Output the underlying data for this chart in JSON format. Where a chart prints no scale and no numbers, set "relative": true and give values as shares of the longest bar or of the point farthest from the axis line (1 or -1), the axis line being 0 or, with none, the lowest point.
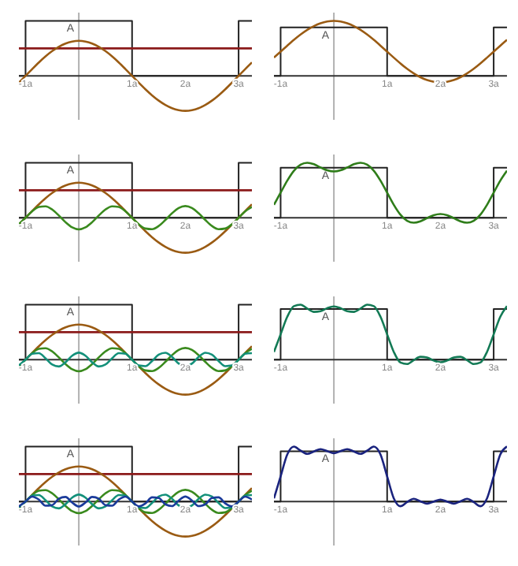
{
  "chart_data": [
    {
      "type": "line",
      "relative": true,
      "x": [
        -1.125,
        -1,
        -0.875,
        -0.75,
        -0.625,
        -0.5,
        -0.375,
        -0.25,
        -0.125,
        0,
        0.125,
        0.25,
        0.375,
        0.5,
        0.625,
        0.75,
        0.875,
        1,
        1.125,
        1.25,
        1.375,
        1.5,
        1.625,
        1.75,
        1.875,
        2,
        2.125,
        2.25,
        2.375,
        2.5,
        2.625,
        2.75,
        2.875,
        3,
        3.125,
        3.25
      ],
      "xlim": [
        -1.125,
        3.25
      ],
      "xticks": [
        {
          "value": -1,
          "label": "-1a"
        },
        {
          "value": 1,
          "label": "1a"
        },
        {
          "value": 2,
          "label": "2a"
        },
        {
          "value": 3,
          "label": "3a"
        }
      ],
      "annotations": [
        "A"
      ],
      "series": [
        {
          "type": "step",
          "color": "#222222",
          "x": [
            -1.125,
            -1,
            1,
            3,
            3.25
          ],
          "values": [
            0,
            1,
            0,
            1,
            1
          ]
        },
        {
          "color": "#8b1a1a",
          "x": [
            -1.125,
            3.25
          ],
          "values": [
            0.5,
            0.5
          ]
        },
        {
          "color": "#9a5b13",
          "values": [
            -0.124,
            0,
            0.124,
            0.244,
            0.354,
            0.45,
            0.529,
            0.588,
            0.624,
            0.637,
            0.624,
            0.588,
            0.529,
            0.45,
            0.354,
            0.244,
            0.124,
            0,
            -0.124,
            -0.244,
            -0.354,
            -0.45,
            -0.529,
            -0.588,
            -0.624,
            -0.637,
            -0.624,
            -0.588,
            -0.529,
            -0.45,
            -0.354,
            -0.244,
            -0.124,
            0,
            0.124,
            0.244
          ]
        }
      ]
    },
    {
      "type": "line",
      "relative": true,
      "x": [
        -1.125,
        -1,
        -0.875,
        -0.75,
        -0.625,
        -0.5,
        -0.375,
        -0.25,
        -0.125,
        0,
        0.125,
        0.25,
        0.375,
        0.5,
        0.625,
        0.75,
        0.875,
        1,
        1.125,
        1.25,
        1.375,
        1.5,
        1.625,
        1.75,
        1.875,
        2,
        2.125,
        2.25,
        2.375,
        2.5,
        2.625,
        2.75,
        2.875,
        3,
        3.125,
        3.25
      ],
      "xlim": [
        -1.125,
        3.25
      ],
      "xticks": [
        {
          "value": -1,
          "label": "-1a"
        },
        {
          "value": 1,
          "label": "1a"
        },
        {
          "value": 2,
          "label": "2a"
        },
        {
          "value": 3,
          "label": "3a"
        }
      ],
      "annotations": [
        "A"
      ],
      "series": [
        {
          "type": "step",
          "color": "#222222",
          "x": [
            -1.125,
            -1,
            1,
            3,
            3.25
          ],
          "values": [
            0,
            0.88,
            0,
            0.88,
            0.88
          ]
        },
        {
          "color": "#9a5b13",
          "values": [
            0.331,
            0.44,
            0.549,
            0.654,
            0.751,
            0.836,
            0.905,
            0.957,
            0.989,
            1,
            0.989,
            0.957,
            0.905,
            0.836,
            0.751,
            0.654,
            0.549,
            0.44,
            0.331,
            0.225,
            0.128,
            0.044,
            -0.026,
            -0.077,
            -0.109,
            -0.12,
            -0.109,
            -0.077,
            -0.026,
            0.044,
            0.128,
            0.225,
            0.331,
            0.44,
            0.549,
            0.654
          ]
        }
      ]
    },
    {
      "type": "line",
      "relative": true,
      "x": [
        -1.125,
        -1,
        -0.875,
        -0.75,
        -0.625,
        -0.5,
        -0.375,
        -0.25,
        -0.125,
        0,
        0.125,
        0.25,
        0.375,
        0.5,
        0.625,
        0.75,
        0.875,
        1,
        1.125,
        1.25,
        1.375,
        1.5,
        1.625,
        1.75,
        1.875,
        2,
        2.125,
        2.25,
        2.375,
        2.5,
        2.625,
        2.75,
        2.875,
        3,
        3.125,
        3.25
      ],
      "xlim": [
        -1.125,
        3.25
      ],
      "xticks": [
        {
          "value": -1,
          "label": "-1a"
        },
        {
          "value": 1,
          "label": "1a"
        },
        {
          "value": 2,
          "label": "2a"
        },
        {
          "value": 3,
          "label": "3a"
        }
      ],
      "annotations": [
        "A"
      ],
      "series": [
        {
          "type": "step",
          "color": "#222222",
          "x": [
            -1.125,
            -1,
            1,
            3,
            3.25
          ],
          "values": [
            0,
            1,
            0,
            1,
            1
          ]
        },
        {
          "color": "#8b1a1a",
          "x": [
            -1.125,
            3.25
          ],
          "values": [
            0.5,
            0.5
          ]
        },
        {
          "color": "#9a5b13",
          "values": [
            -0.124,
            0,
            0.124,
            0.244,
            0.354,
            0.45,
            0.529,
            0.588,
            0.624,
            0.637,
            0.624,
            0.588,
            0.529,
            0.45,
            0.354,
            0.244,
            0.124,
            0,
            -0.124,
            -0.244,
            -0.354,
            -0.45,
            -0.529,
            -0.588,
            -0.624,
            -0.637,
            -0.624,
            -0.588,
            -0.529,
            -0.45,
            -0.354,
            -0.244,
            -0.124,
            0,
            0.124,
            0.244
          ]
        },
        {
          "color": "#3a8a1e",
          "values": [
            -0.118,
            0,
            0.118,
            0.196,
            0.208,
            0.15,
            0.041,
            -0.081,
            -0.176,
            -0.212,
            -0.176,
            -0.081,
            0.041,
            0.15,
            0.208,
            0.196,
            0.118,
            0,
            -0.118,
            -0.196,
            -0.208,
            -0.15,
            -0.041,
            0.081,
            0.176,
            0.212,
            0.176,
            0.081,
            -0.041,
            -0.15,
            -0.208,
            -0.196,
            -0.118,
            0,
            0.118,
            0.196
          ]
        }
      ]
    },
    {
      "type": "line",
      "relative": true,
      "x": [
        -1.125,
        -1,
        -0.875,
        -0.75,
        -0.625,
        -0.5,
        -0.375,
        -0.25,
        -0.125,
        0,
        0.125,
        0.25,
        0.375,
        0.5,
        0.625,
        0.75,
        0.875,
        1,
        1.125,
        1.25,
        1.375,
        1.5,
        1.625,
        1.75,
        1.875,
        2,
        2.125,
        2.25,
        2.375,
        2.5,
        2.625,
        2.75,
        2.875,
        3,
        3.125,
        3.25
      ],
      "xlim": [
        -1.125,
        3.25
      ],
      "xticks": [
        {
          "value": -1,
          "label": "-1a"
        },
        {
          "value": 1,
          "label": "1a"
        },
        {
          "value": 2,
          "label": "2a"
        },
        {
          "value": 3,
          "label": "3a"
        }
      ],
      "annotations": [
        "A"
      ],
      "series": [
        {
          "type": "step",
          "color": "#222222",
          "x": [
            -1.125,
            -1,
            1,
            3,
            3.25
          ],
          "values": [
            0,
            0.909,
            0,
            0.909,
            0.909
          ]
        },
        {
          "color": "#2f7d1a",
          "values": [
            0.235,
            0.455,
            0.675,
            0.855,
            0.965,
            1,
            0.973,
            0.915,
            0.862,
            0.841,
            0.862,
            0.915,
            0.973,
            1,
            0.965,
            0.855,
            0.675,
            0.455,
            0.235,
            0.055,
            -0.056,
            -0.091,
            -0.064,
            -0.006,
            0.047,
            0.068,
            0.047,
            -0.006,
            -0.064,
            -0.091,
            -0.056,
            0.055,
            0.235,
            0.455,
            0.675,
            0.855
          ]
        }
      ]
    },
    {
      "type": "line",
      "relative": true,
      "x": [
        -1.125,
        -1,
        -0.875,
        -0.75,
        -0.625,
        -0.5,
        -0.375,
        -0.25,
        -0.125,
        0,
        0.125,
        0.25,
        0.375,
        0.5,
        0.625,
        0.75,
        0.875,
        1,
        1.125,
        1.25,
        1.375,
        1.5,
        1.625,
        1.75,
        1.875,
        2,
        2.125,
        2.25,
        2.375,
        2.5,
        2.625,
        2.75,
        2.875,
        3,
        3.125,
        3.25
      ],
      "xlim": [
        -1.125,
        3.25
      ],
      "xticks": [
        {
          "value": -1,
          "label": "-1a"
        },
        {
          "value": 1,
          "label": "1a"
        },
        {
          "value": 2,
          "label": "2a"
        },
        {
          "value": 3,
          "label": "3a"
        }
      ],
      "annotations": [
        "A"
      ],
      "series": [
        {
          "type": "step",
          "color": "#222222",
          "x": [
            -1.125,
            -1,
            1,
            3,
            3.25
          ],
          "values": [
            0,
            1,
            0,
            1,
            1
          ]
        },
        {
          "color": "#8b1a1a",
          "x": [
            -1.125,
            3.25
          ],
          "values": [
            0.5,
            0.5
          ]
        },
        {
          "color": "#9a5b13",
          "values": [
            -0.124,
            0,
            0.124,
            0.244,
            0.354,
            0.45,
            0.529,
            0.588,
            0.624,
            0.637,
            0.624,
            0.588,
            0.529,
            0.45,
            0.354,
            0.244,
            0.124,
            0,
            -0.124,
            -0.244,
            -0.354,
            -0.45,
            -0.529,
            -0.588,
            -0.624,
            -0.637,
            -0.624,
            -0.588,
            -0.529,
            -0.45,
            -0.354,
            -0.244,
            -0.124,
            0,
            0.124,
            0.244
          ]
        },
        {
          "color": "#3a8a1e",
          "values": [
            -0.118,
            0,
            0.118,
            0.196,
            0.208,
            0.15,
            0.041,
            -0.081,
            -0.176,
            -0.212,
            -0.176,
            -0.081,
            0.041,
            0.15,
            0.208,
            0.196,
            0.118,
            0,
            -0.118,
            -0.196,
            -0.208,
            -0.15,
            -0.041,
            0.081,
            0.176,
            0.212,
            0.176,
            0.081,
            -0.041,
            -0.15,
            -0.208,
            -0.196,
            -0.118,
            0,
            0.118,
            0.196
          ]
        },
        {
          "color": "#13907a",
          "values": [
            -0.106,
            0,
            0.106,
            0.118,
            0.025,
            -0.09,
            -0.125,
            -0.049,
            0.071,
            0.127,
            0.071,
            -0.049,
            -0.125,
            -0.09,
            0.025,
            0.118,
            0.106,
            0,
            -0.106,
            -0.118,
            -0.025,
            0.09,
            0.125,
            0.049,
            -0.071,
            -0.127,
            -0.071,
            0.049,
            0.125,
            0.09,
            -0.025,
            -0.118,
            -0.106,
            0,
            0.106,
            0.118
          ]
        }
      ]
    },
    {
      "type": "line",
      "relative": true,
      "x": [
        -1.125,
        -1,
        -0.875,
        -0.75,
        -0.625,
        -0.5,
        -0.375,
        -0.25,
        -0.125,
        0,
        0.125,
        0.25,
        0.375,
        0.5,
        0.625,
        0.75,
        0.875,
        1,
        1.125,
        1.25,
        1.375,
        1.5,
        1.625,
        1.75,
        1.875,
        2,
        2.125,
        2.25,
        2.375,
        2.5,
        2.625,
        2.75,
        2.875,
        3,
        3.125,
        3.25
      ],
      "xlim": [
        -1.125,
        3.25
      ],
      "xticks": [
        {
          "value": -1,
          "label": "-1a"
        },
        {
          "value": 1,
          "label": "1a"
        },
        {
          "value": 2,
          "label": "2a"
        },
        {
          "value": 3,
          "label": "3a"
        }
      ],
      "annotations": [
        "A"
      ],
      "series": [
        {
          "type": "step",
          "color": "#222222",
          "x": [
            -1.125,
            -1,
            1,
            3,
            3.25
          ],
          "values": [
            0,
            0.92,
            0,
            0.92,
            0.92
          ]
        },
        {
          "color": "#137a55",
          "values": [
            0.14,
            0.46,
            0.78,
            0.973,
            1,
            0.929,
            0.869,
            0.881,
            0.937,
            0.968,
            0.937,
            0.881,
            0.869,
            0.929,
            1,
            0.973,
            0.78,
            0.46,
            0.14,
            -0.053,
            -0.08,
            -0.009,
            0.051,
            0.039,
            -0.017,
            -0.048,
            -0.017,
            0.039,
            0.051,
            -0.009,
            -0.08,
            -0.053,
            0.14,
            0.46,
            0.78,
            0.973
          ]
        }
      ]
    },
    {
      "type": "line",
      "relative": true,
      "x": [
        -1.125,
        -1,
        -0.875,
        -0.75,
        -0.625,
        -0.5,
        -0.375,
        -0.25,
        -0.125,
        0,
        0.125,
        0.25,
        0.375,
        0.5,
        0.625,
        0.75,
        0.875,
        1,
        1.125,
        1.25,
        1.375,
        1.5,
        1.625,
        1.75,
        1.875,
        2,
        2.125,
        2.25,
        2.375,
        2.5,
        2.625,
        2.75,
        2.875,
        3,
        3.125,
        3.25
      ],
      "xlim": [
        -1.125,
        3.25
      ],
      "xticks": [
        {
          "value": -1,
          "label": "-1a"
        },
        {
          "value": 1,
          "label": "1a"
        },
        {
          "value": 2,
          "label": "2a"
        },
        {
          "value": 3,
          "label": "3a"
        }
      ],
      "annotations": [
        "A"
      ],
      "series": [
        {
          "type": "step",
          "color": "#222222",
          "x": [
            -1.125,
            -1,
            1,
            3,
            3.25
          ],
          "values": [
            0,
            1,
            0,
            1,
            1
          ]
        },
        {
          "color": "#8b1a1a",
          "x": [
            -1.125,
            3.25
          ],
          "values": [
            0.5,
            0.5
          ]
        },
        {
          "color": "#9a5b13",
          "values": [
            -0.124,
            0,
            0.124,
            0.244,
            0.354,
            0.45,
            0.529,
            0.588,
            0.624,
            0.637,
            0.624,
            0.588,
            0.529,
            0.45,
            0.354,
            0.244,
            0.124,
            0,
            -0.124,
            -0.244,
            -0.354,
            -0.45,
            -0.529,
            -0.588,
            -0.624,
            -0.637,
            -0.624,
            -0.588,
            -0.529,
            -0.45,
            -0.354,
            -0.244,
            -0.124,
            0,
            0.124,
            0.244
          ]
        },
        {
          "color": "#3a8a1e",
          "values": [
            -0.118,
            0,
            0.118,
            0.196,
            0.208,
            0.15,
            0.041,
            -0.081,
            -0.176,
            -0.212,
            -0.176,
            -0.081,
            0.041,
            0.15,
            0.208,
            0.196,
            0.118,
            0,
            -0.118,
            -0.196,
            -0.208,
            -0.15,
            -0.041,
            0.081,
            0.176,
            0.212,
            0.176,
            0.081,
            -0.041,
            -0.15,
            -0.208,
            -0.196,
            -0.118,
            0,
            0.118,
            0.196
          ]
        },
        {
          "color": "#13907a",
          "values": [
            -0.106,
            0,
            0.106,
            0.118,
            0.025,
            -0.09,
            -0.125,
            -0.049,
            0.071,
            0.127,
            0.071,
            -0.049,
            -0.125,
            -0.09,
            0.025,
            0.118,
            0.106,
            0,
            -0.106,
            -0.118,
            -0.025,
            0.09,
            0.125,
            0.049,
            -0.071,
            -0.127,
            -0.071,
            0.049,
            0.125,
            0.09,
            -0.025,
            -0.118,
            -0.106,
            0,
            0.106,
            0.118
          ]
        },
        {
          "color": "#1a3a9a",
          "values": [
            -0.089,
            0,
            0.089,
            0.035,
            -0.076,
            -0.064,
            0.051,
            0.084,
            -0.018,
            -0.091,
            -0.018,
            0.084,
            0.051,
            -0.064,
            -0.076,
            0.035,
            0.089,
            0,
            -0.089,
            -0.035,
            0.076,
            0.064,
            -0.051,
            -0.084,
            0.018,
            0.091,
            0.018,
            -0.084,
            -0.051,
            0.064,
            0.076,
            -0.035,
            -0.089,
            0,
            0.089,
            0.035
          ]
        }
      ]
    },
    {
      "type": "line",
      "relative": true,
      "x": [
        -1.125,
        -1,
        -0.875,
        -0.75,
        -0.625,
        -0.5,
        -0.375,
        -0.25,
        -0.125,
        0,
        0.125,
        0.25,
        0.375,
        0.5,
        0.625,
        0.75,
        0.875,
        1,
        1.125,
        1.25,
        1.375,
        1.5,
        1.625,
        1.75,
        1.875,
        2,
        2.125,
        2.25,
        2.375,
        2.5,
        2.625,
        2.75,
        2.875,
        3,
        3.125,
        3.25
      ],
      "xlim": [
        -1.125,
        3.25
      ],
      "xticks": [
        {
          "value": -1,
          "label": "-1a"
        },
        {
          "value": 1,
          "label": "1a"
        },
        {
          "value": 2,
          "label": "2a"
        },
        {
          "value": 3,
          "label": "3a"
        }
      ],
      "annotations": [
        "A"
      ],
      "series": [
        {
          "type": "step",
          "color": "#222222",
          "x": [
            -1.125,
            -1,
            1,
            3,
            3.25
          ],
          "values": [
            0,
            0.915,
            0,
            0.915,
            0.915
          ]
        },
        {
          "color": "#1a237e",
          "values": [
            0.058,
            0.457,
            0.857,
            1,
            0.925,
            0.866,
            0.911,
            0.953,
            0.916,
            0.879,
            0.916,
            0.953,
            0.911,
            0.866,
            0.925,
            1,
            0.857,
            0.457,
            0.058,
            -0.085,
            -0.01,
            0.049,
            0.004,
            -0.038,
            -0.001,
            0.036,
            -0.001,
            -0.038,
            0.004,
            0.049,
            -0.01,
            -0.085,
            0.058,
            0.457,
            0.857,
            1
          ]
        }
      ]
    }
  ]
}
